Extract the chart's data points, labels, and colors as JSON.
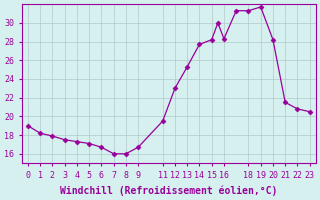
{
  "full_x": [
    0,
    1,
    2,
    3,
    4,
    5,
    6,
    7,
    8,
    9,
    11,
    12,
    13,
    14,
    15,
    15.5,
    16,
    17.0,
    18.0,
    19,
    20,
    21,
    22,
    23
  ],
  "full_y": [
    19.0,
    18.2,
    17.9,
    17.5,
    17.3,
    17.1,
    16.7,
    16.0,
    16.0,
    16.7,
    19.5,
    23.0,
    25.3,
    27.7,
    28.2,
    30.0,
    28.3,
    31.3,
    31.3,
    31.7,
    28.2,
    21.5,
    20.8,
    20.5
  ],
  "line_color": "#990099",
  "marker_color": "#990099",
  "bg_color": "#d6f0f0",
  "grid_color": "#b0c8c8",
  "xlabel": "Windchill (Refroidissement éolien,°C)",
  "xlim": [
    -0.5,
    23.5
  ],
  "ylim": [
    15,
    32
  ],
  "yticks": [
    16,
    18,
    20,
    22,
    24,
    26,
    28,
    30
  ],
  "xtick_positions": [
    0,
    1,
    2,
    3,
    4,
    5,
    6,
    7,
    8,
    9,
    11,
    12,
    13,
    14,
    15,
    16,
    18,
    19,
    20,
    21,
    22,
    23
  ],
  "xtick_labels": [
    "0",
    "1",
    "2",
    "3",
    "4",
    "5",
    "6",
    "7",
    "8",
    "9",
    "11",
    "12",
    "13",
    "14",
    "15",
    "16",
    "18",
    "19",
    "20",
    "21",
    "22",
    "23"
  ],
  "title_fontsize": 7,
  "tick_fontsize": 6
}
